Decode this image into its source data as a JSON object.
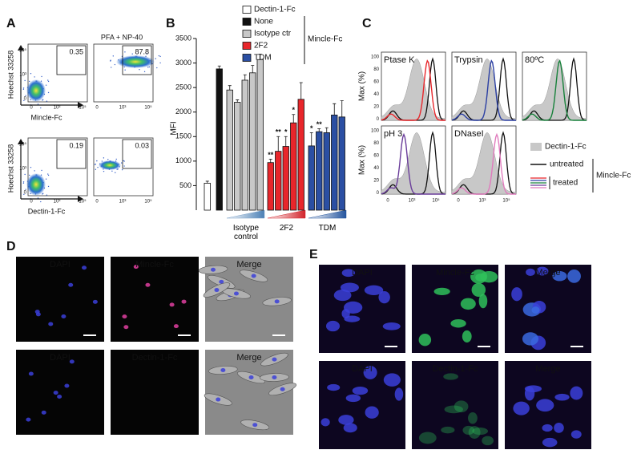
{
  "panel_a": {
    "label": "A",
    "condition": "PFA + NP-40",
    "ticks": [
      "0",
      "10³",
      "10⁵"
    ],
    "rows": [
      {
        "y_label": "Hoechst 33258",
        "x_label": "Mincle-Fc",
        "gates": [
          0.35,
          87.8
        ]
      },
      {
        "y_label": "Hoechst 33258",
        "x_label": "Dectin-1-Fc",
        "gates": [
          0.19,
          0.03
        ]
      }
    ]
  },
  "chart_data": {
    "type": "bar",
    "label": "B",
    "y_label": "MFI",
    "ylim": [
      0,
      3500
    ],
    "yticks": [
      500,
      1000,
      1500,
      2000,
      2500,
      3000,
      3500
    ],
    "legend_group": "Mincle-Fc",
    "groups": [
      "Isotype control",
      "2F2",
      "TDM"
    ],
    "series": [
      {
        "name": "Dectin-1-Fc",
        "color": "#ffffff",
        "values": [
          550
        ],
        "errors": [
          40
        ]
      },
      {
        "name": "None",
        "color": "#111111",
        "values": [
          2880
        ],
        "errors": [
          60
        ]
      },
      {
        "name": "Isotype ctr",
        "color": "#c8c8c8",
        "values": [
          2450,
          2200,
          2650,
          2800,
          3070
        ],
        "errors": [
          90,
          50,
          110,
          150,
          110
        ]
      },
      {
        "name": "2F2",
        "color": "#e8262b",
        "values": [
          970,
          1200,
          1300,
          1780,
          2260
        ],
        "errors": [
          70,
          300,
          200,
          170,
          340
        ],
        "significance": [
          "**",
          "**",
          "*",
          "*",
          null
        ]
      },
      {
        "name": "TDM",
        "color": "#2b4fa3",
        "values": [
          1310,
          1600,
          1580,
          1940,
          1900
        ],
        "errors": [
          270,
          60,
          100,
          230,
          330
        ],
        "significance": [
          "*",
          "**",
          null,
          null,
          null
        ]
      }
    ]
  },
  "panel_c": {
    "label": "C",
    "y_label": "Max (%)",
    "yticks": [
      "100",
      "80",
      "60",
      "40",
      "20",
      "0"
    ],
    "xticks": [
      "0",
      "10³",
      "10⁵"
    ],
    "treatments": [
      {
        "name": "Ptase K",
        "color": "#e8262b"
      },
      {
        "name": "Trypsin",
        "color": "#2b3fa3"
      },
      {
        "name": "80ºC",
        "color": "#17813a"
      },
      {
        "name": "pH 3",
        "color": "#6a3d9a"
      },
      {
        "name": "DNaseI",
        "color": "#e07bbd"
      }
    ],
    "legend": {
      "control": "Dectin-1-Fc",
      "untreated": "untreated",
      "treated": "treated",
      "group": "Mincle-Fc"
    }
  },
  "panel_d": {
    "label": "D",
    "rows": [
      [
        "DAPI",
        "Mincle-Fc",
        "Merge"
      ],
      [
        "DAPI",
        "Dectin-1-Fc",
        "Merge"
      ]
    ]
  },
  "panel_e": {
    "label": "E",
    "rows": [
      [
        "DAPI",
        "Mincle-Fc",
        "Merge"
      ],
      [
        "DAPI",
        "Dectin-1-Fc",
        "Merge"
      ]
    ]
  }
}
